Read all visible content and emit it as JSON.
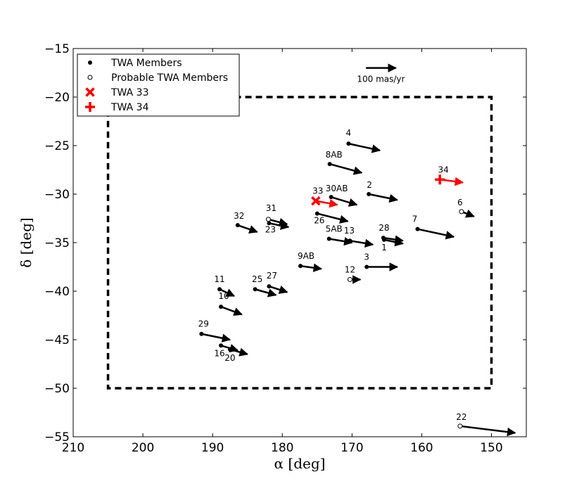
{
  "chart_data": {
    "type": "scatter",
    "xlabel": "α [deg]",
    "ylabel": "δ [deg]",
    "xlim": [
      210,
      145
    ],
    "ylim": [
      -55,
      -15
    ],
    "x_ticks": [
      210,
      200,
      190,
      180,
      170,
      160,
      150
    ],
    "y_ticks": [
      -15,
      -20,
      -25,
      -30,
      -35,
      -40,
      -45,
      -50,
      -55
    ],
    "x_tick_labels": [
      "210",
      "200",
      "190",
      "180",
      "170",
      "160",
      "150"
    ],
    "y_tick_labels": [
      "−15",
      "−20",
      "−25",
      "−30",
      "−35",
      "−40",
      "−45",
      "−50",
      "−55"
    ],
    "grid": false,
    "legend_placement": "top-left",
    "legend": [
      {
        "label": "TWA Members",
        "marker": "filled-circle"
      },
      {
        "label": "Probable TWA Members",
        "marker": "open-circle"
      },
      {
        "label": "TWA 33",
        "marker": "x",
        "color": "#ff0000"
      },
      {
        "label": "TWA 34",
        "marker": "plus",
        "color": "#ff0000"
      }
    ],
    "scale_arrow": {
      "label": "100 mas/yr",
      "ra": 168,
      "dec": -17,
      "dra": -4.3,
      "ddec": 0
    },
    "region_box": {
      "ra": [
        205,
        150
      ],
      "dec": [
        -50,
        -20
      ],
      "style": "dashed"
    },
    "members": [
      {
        "label": "4",
        "ra": 170.5,
        "dec": -24.8,
        "dra": -4.5,
        "ddec": -0.7,
        "marker": "filled"
      },
      {
        "label": "8AB",
        "ra": 173.2,
        "dec": -26.9,
        "dra": -4.6,
        "ddec": -0.9,
        "marker": "filled"
      },
      {
        "label": "2",
        "ra": 167.6,
        "dec": -30.0,
        "dra": -4.1,
        "ddec": -0.6,
        "marker": "filled"
      },
      {
        "label": "30AB",
        "ra": 173.0,
        "dec": -30.3,
        "dra": -3.7,
        "ddec": -0.8,
        "marker": "filled"
      },
      {
        "label": "26",
        "ra": 175.0,
        "dec": -32.0,
        "dra": -4.4,
        "ddec": -0.8,
        "marker": "filled"
      },
      {
        "label": "32",
        "ra": 186.4,
        "dec": -33.2,
        "dra": -2.8,
        "ddec": -0.7,
        "marker": "filled"
      },
      {
        "label": "31",
        "ra": 182.0,
        "dec": -32.6,
        "dra": -2.7,
        "ddec": -0.5,
        "marker": "open"
      },
      {
        "label": "23",
        "ra": 181.9,
        "dec": -33.0,
        "dra": -2.8,
        "ddec": -0.4,
        "marker": "filled"
      },
      {
        "label": "7",
        "ra": 160.6,
        "dec": -33.6,
        "dra": -5.2,
        "ddec": -0.8,
        "marker": "filled"
      },
      {
        "label": "5AB",
        "ra": 173.3,
        "dec": -34.6,
        "dra": -3.3,
        "ddec": -0.4,
        "marker": "filled"
      },
      {
        "label": "13",
        "ra": 170.3,
        "dec": -34.8,
        "dra": -3.3,
        "ddec": -0.4,
        "marker": "filled"
      },
      {
        "label": "28",
        "ra": 165.5,
        "dec": -34.5,
        "dra": -2.8,
        "ddec": -0.3,
        "marker": "filled"
      },
      {
        "label": "1",
        "ra": 165.4,
        "dec": -34.7,
        "dra": -2.7,
        "ddec": -0.4,
        "marker": "filled"
      },
      {
        "label": "9AB",
        "ra": 177.4,
        "dec": -37.4,
        "dra": -3.0,
        "ddec": -0.3,
        "marker": "filled"
      },
      {
        "label": "3",
        "ra": 167.9,
        "dec": -37.5,
        "dra": -4.4,
        "ddec": 0.0,
        "marker": "filled"
      },
      {
        "label": "12",
        "ra": 170.3,
        "dec": -38.8,
        "dra": -1.5,
        "ddec": 0.0,
        "marker": "open"
      },
      {
        "label": "11",
        "ra": 189.0,
        "dec": -39.8,
        "dra": -2.1,
        "ddec": -0.7,
        "marker": "filled"
      },
      {
        "label": "25",
        "ra": 183.9,
        "dec": -39.8,
        "dra": -3.0,
        "ddec": -0.6,
        "marker": "filled"
      },
      {
        "label": "27",
        "ra": 181.9,
        "dec": -39.5,
        "dra": -2.6,
        "ddec": -0.6,
        "marker": "filled"
      },
      {
        "label": "10",
        "ra": 188.8,
        "dec": -41.6,
        "dra": -3.0,
        "ddec": -0.8,
        "marker": "filled"
      },
      {
        "label": "29",
        "ra": 191.6,
        "dec": -44.4,
        "dra": -4.1,
        "ddec": -0.6,
        "marker": "filled"
      },
      {
        "label": "16",
        "ra": 188.8,
        "dec": -45.6,
        "dra": -2.4,
        "ddec": -0.5,
        "marker": "filled"
      },
      {
        "label": "20",
        "ra": 187.5,
        "dec": -46.0,
        "dra": -2.5,
        "ddec": -0.5,
        "marker": "filled"
      },
      {
        "label": "6",
        "ra": 154.3,
        "dec": -31.8,
        "dra": -1.8,
        "ddec": -0.5,
        "marker": "open"
      },
      {
        "label": "22",
        "ra": 154.5,
        "dec": -53.9,
        "dra": -7.9,
        "ddec": -0.7,
        "marker": "open"
      }
    ],
    "twa33": {
      "label": "33",
      "ra": 175.2,
      "dec": -30.7,
      "dra": -3.1,
      "ddec": -0.4
    },
    "twa34": {
      "label": "34",
      "ra": 157.4,
      "dec": -28.5,
      "dra": -3.3,
      "ddec": -0.3
    }
  }
}
